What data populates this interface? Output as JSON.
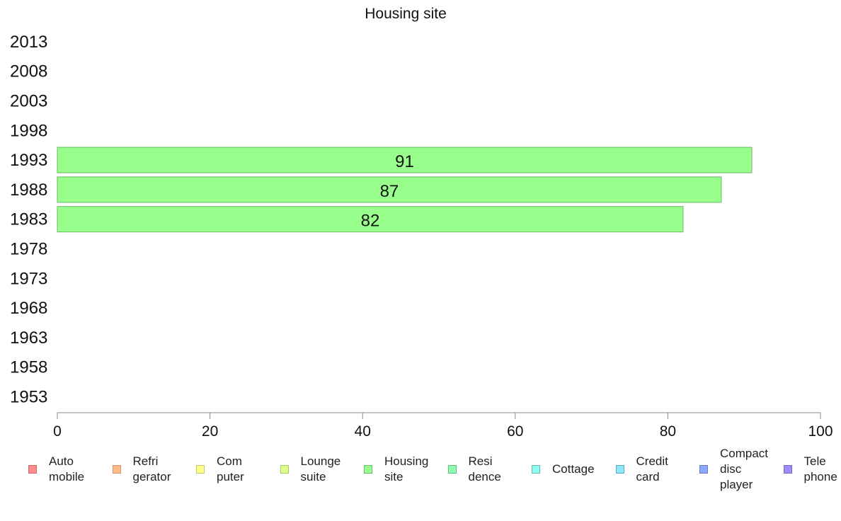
{
  "chart_data": {
    "type": "bar",
    "orientation": "horizontal",
    "title": "Housing site",
    "xlabel": "",
    "ylabel": "",
    "xlim": [
      0,
      100
    ],
    "x_ticks": [
      0,
      20,
      40,
      60,
      80,
      100
    ],
    "categories": [
      "2013",
      "2008",
      "2003",
      "1998",
      "1993",
      "1988",
      "1983",
      "1978",
      "1973",
      "1968",
      "1963",
      "1958",
      "1953"
    ],
    "series": [
      {
        "name": "Housing site",
        "color": "#99ff8c",
        "border_color": "#6db865",
        "values": [
          null,
          null,
          null,
          null,
          91,
          87,
          82,
          null,
          null,
          null,
          null,
          null,
          null
        ],
        "data_labels": [
          "",
          "",
          "",
          "",
          "91",
          "87",
          "82",
          "",
          "",
          "",
          "",
          "",
          ""
        ]
      }
    ],
    "grid": false,
    "legend_position": "bottom",
    "legend": [
      {
        "label": "Auto\nmobile",
        "color": "#ff8c8c",
        "border": "#d46a6a"
      },
      {
        "label": "Refri\ngerator",
        "color": "#ffbb8c",
        "border": "#d4956a"
      },
      {
        "label": "Com\nputer",
        "color": "#ffff8c",
        "border": "#c8c86a"
      },
      {
        "label": "Lounge\nsuite",
        "color": "#ddff8c",
        "border": "#a8c86a"
      },
      {
        "label": "Housing\nsite",
        "color": "#99ff8c",
        "border": "#6db865"
      },
      {
        "label": "Resi\ndence",
        "color": "#8cffb0",
        "border": "#65b882"
      },
      {
        "label": "Cottage",
        "color": "#8cfff0",
        "border": "#65b8ae"
      },
      {
        "label": "Credit\ncard",
        "color": "#8ce8ff",
        "border": "#65a8c0"
      },
      {
        "label": "Compact\ndisc\nplayer",
        "color": "#8caaff",
        "border": "#657cc0"
      },
      {
        "label": "Tele\nphone",
        "color": "#a08cff",
        "border": "#7565c0"
      }
    ]
  }
}
